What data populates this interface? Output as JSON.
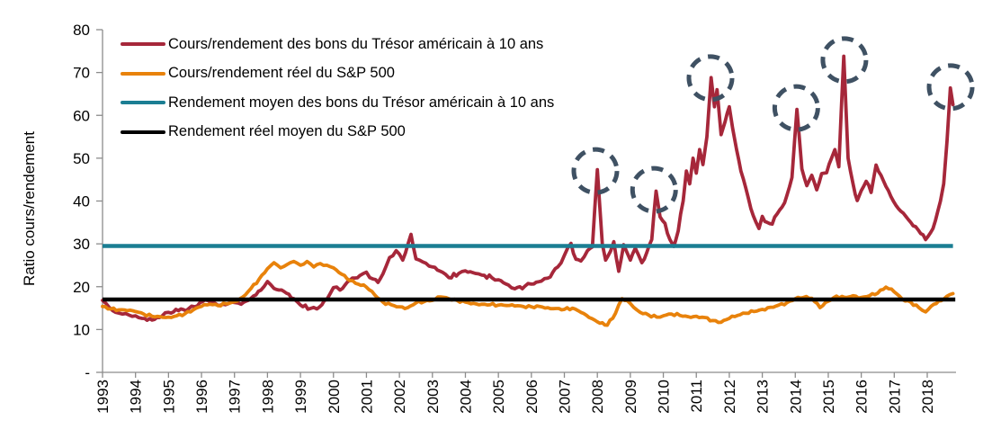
{
  "figure": {
    "background": "#ffffff",
    "y_axis_title": "Ratio cours/rendement"
  },
  "legend": {
    "items": [
      {
        "label": "Cours/rendement des bons du Trésor américain à 10 ans",
        "color": "#A6273A"
      },
      {
        "label": "Cours/rendement réel du S&P 500",
        "color": "#E8820B"
      },
      {
        "label": "Rendement moyen des bons du Trésor américain à 10 ans",
        "color": "#1B7E93"
      },
      {
        "label": "Rendement réel moyen du S&P 500",
        "color": "#000000"
      }
    ]
  },
  "chart_data": {
    "type": "line",
    "title": "",
    "xlabel": "",
    "ylabel": "Ratio cours/rendement",
    "xlim": [
      1993,
      2019.0
    ],
    "ylim": [
      0,
      80
    ],
    "grid": false,
    "legend_position": "top-left-inside",
    "axis_color": "#8C8C8C",
    "tick_label_color": "#000000",
    "yticks": {
      "values": [
        0,
        10,
        20,
        30,
        40,
        50,
        60,
        70,
        80
      ],
      "labels": [
        "-",
        "10",
        "20",
        "30",
        "40",
        "50",
        "60",
        "70",
        "80"
      ]
    },
    "xticks": {
      "values": [
        1993,
        1994,
        1995,
        1996,
        1997,
        1998,
        1999,
        2000,
        2001,
        2002,
        2003,
        2004,
        2005,
        2006,
        2007,
        2008,
        2009,
        2010,
        2011,
        2012,
        2013,
        2014,
        2015,
        2016,
        2017,
        2018
      ],
      "labels": [
        "1993",
        "1994",
        "1995",
        "1996",
        "1997",
        "1998",
        "1999",
        "2000",
        "2001",
        "2002",
        "2003",
        "2004",
        "2005",
        "2006",
        "2007",
        "2008",
        "2009",
        "2010",
        "2011",
        "2012",
        "2013",
        "2014",
        "2015",
        "2016",
        "2017",
        "2018"
      ]
    },
    "series": [
      {
        "name": "Cours/rendement des bons du Trésor américain à 10 ans",
        "type": "line",
        "color": "#A6273A",
        "width": 3.8,
        "jitter": 0.5,
        "points": [
          [
            1993.0,
            16.8
          ],
          [
            1993.2,
            15.2
          ],
          [
            1993.4,
            14.0
          ],
          [
            1993.6,
            13.6
          ],
          [
            1993.8,
            13.4
          ],
          [
            1994.0,
            13.2
          ],
          [
            1994.2,
            12.6
          ],
          [
            1994.5,
            12.2
          ],
          [
            1994.8,
            13.1
          ],
          [
            1995.0,
            14.0
          ],
          [
            1995.3,
            14.4
          ],
          [
            1995.6,
            14.8
          ],
          [
            1995.8,
            15.3
          ],
          [
            1996.1,
            16.9
          ],
          [
            1996.3,
            16.2
          ],
          [
            1996.5,
            15.6
          ],
          [
            1996.8,
            16.0
          ],
          [
            1997.0,
            16.3
          ],
          [
            1997.2,
            15.9
          ],
          [
            1997.5,
            17.3
          ],
          [
            1997.8,
            19.2
          ],
          [
            1998.0,
            21.2
          ],
          [
            1998.2,
            19.6
          ],
          [
            1998.5,
            18.9
          ],
          [
            1998.8,
            17.2
          ],
          [
            1999.0,
            15.7
          ],
          [
            1999.3,
            14.9
          ],
          [
            1999.5,
            14.8
          ],
          [
            1999.8,
            17.0
          ],
          [
            2000.0,
            19.8
          ],
          [
            2000.2,
            19.2
          ],
          [
            2000.5,
            21.5
          ],
          [
            2000.8,
            22.6
          ],
          [
            2001.0,
            23.4
          ],
          [
            2001.2,
            21.8
          ],
          [
            2001.35,
            21.0
          ],
          [
            2001.5,
            23.0
          ],
          [
            2001.7,
            26.8
          ],
          [
            2001.9,
            28.4
          ],
          [
            2002.1,
            26.2
          ],
          [
            2002.35,
            32.2
          ],
          [
            2002.5,
            26.5
          ],
          [
            2002.7,
            25.8
          ],
          [
            2002.9,
            24.8
          ],
          [
            2003.0,
            24.6
          ],
          [
            2003.3,
            23.4
          ],
          [
            2003.5,
            22.1
          ],
          [
            2003.8,
            23.1
          ],
          [
            2004.0,
            23.7
          ],
          [
            2004.3,
            23.1
          ],
          [
            2004.5,
            22.7
          ],
          [
            2004.8,
            22.1
          ],
          [
            2005.0,
            21.6
          ],
          [
            2005.3,
            20.4
          ],
          [
            2005.5,
            19.5
          ],
          [
            2005.8,
            20.1
          ],
          [
            2006.0,
            20.6
          ],
          [
            2006.3,
            21.3
          ],
          [
            2006.5,
            22.0
          ],
          [
            2006.8,
            24.6
          ],
          [
            2007.0,
            27.3
          ],
          [
            2007.2,
            30.1
          ],
          [
            2007.35,
            26.4
          ],
          [
            2007.5,
            26.0
          ],
          [
            2007.7,
            28.4
          ],
          [
            2007.85,
            29.3
          ],
          [
            2008.0,
            47.3
          ],
          [
            2008.15,
            30.0
          ],
          [
            2008.25,
            26.2
          ],
          [
            2008.4,
            28.3
          ],
          [
            2008.5,
            30.5
          ],
          [
            2008.65,
            23.6
          ],
          [
            2008.8,
            29.8
          ],
          [
            2009.0,
            26.2
          ],
          [
            2009.15,
            29.0
          ],
          [
            2009.35,
            25.6
          ],
          [
            2009.5,
            28.0
          ],
          [
            2009.65,
            31.0
          ],
          [
            2009.78,
            42.3
          ],
          [
            2009.9,
            36.3
          ],
          [
            2010.05,
            34.8
          ],
          [
            2010.2,
            31.0
          ],
          [
            2010.32,
            29.4
          ],
          [
            2010.45,
            33.0
          ],
          [
            2010.6,
            40.0
          ],
          [
            2010.7,
            47.0
          ],
          [
            2010.8,
            44.0
          ],
          [
            2010.9,
            50.0
          ],
          [
            2011.0,
            46.5
          ],
          [
            2011.1,
            52.0
          ],
          [
            2011.2,
            48.5
          ],
          [
            2011.32,
            55.0
          ],
          [
            2011.45,
            68.8
          ],
          [
            2011.55,
            62.0
          ],
          [
            2011.63,
            66.0
          ],
          [
            2011.75,
            55.5
          ],
          [
            2011.87,
            58.5
          ],
          [
            2012.0,
            62.0
          ],
          [
            2012.1,
            57.0
          ],
          [
            2012.22,
            52.0
          ],
          [
            2012.35,
            47.0
          ],
          [
            2012.5,
            43.0
          ],
          [
            2012.65,
            38.3
          ],
          [
            2012.8,
            35.2
          ],
          [
            2012.9,
            33.6
          ],
          [
            2013.0,
            36.4
          ],
          [
            2013.15,
            35.0
          ],
          [
            2013.3,
            34.6
          ],
          [
            2013.45,
            37.0
          ],
          [
            2013.6,
            38.6
          ],
          [
            2013.75,
            41.4
          ],
          [
            2013.9,
            45.5
          ],
          [
            2014.05,
            61.4
          ],
          [
            2014.2,
            47.5
          ],
          [
            2014.35,
            43.6
          ],
          [
            2014.5,
            46.0
          ],
          [
            2014.65,
            42.6
          ],
          [
            2014.8,
            46.4
          ],
          [
            2014.95,
            46.6
          ],
          [
            2015.1,
            50.0
          ],
          [
            2015.2,
            52.0
          ],
          [
            2015.32,
            48.0
          ],
          [
            2015.47,
            73.8
          ],
          [
            2015.6,
            50.0
          ],
          [
            2015.75,
            44.0
          ],
          [
            2015.88,
            40.1
          ],
          [
            2016.0,
            42.4
          ],
          [
            2016.15,
            44.6
          ],
          [
            2016.3,
            42.0
          ],
          [
            2016.45,
            48.4
          ],
          [
            2016.6,
            46.0
          ],
          [
            2016.75,
            43.4
          ],
          [
            2016.9,
            41.0
          ],
          [
            2017.05,
            39.0
          ],
          [
            2017.2,
            37.6
          ],
          [
            2017.35,
            36.4
          ],
          [
            2017.5,
            35.0
          ],
          [
            2017.65,
            34.0
          ],
          [
            2017.8,
            32.4
          ],
          [
            2017.95,
            31.0
          ],
          [
            2018.1,
            32.6
          ],
          [
            2018.25,
            35.5
          ],
          [
            2018.4,
            40.0
          ],
          [
            2018.5,
            44.0
          ],
          [
            2018.6,
            54.0
          ],
          [
            2018.7,
            66.4
          ],
          [
            2018.78,
            62.5
          ]
        ]
      },
      {
        "name": "Cours/rendement réel du S&P 500",
        "type": "line",
        "color": "#E8820B",
        "width": 3.8,
        "jitter": 0.35,
        "points": [
          [
            1993.0,
            15.4
          ],
          [
            1993.25,
            14.8
          ],
          [
            1993.5,
            14.6
          ],
          [
            1993.75,
            14.4
          ],
          [
            1994.0,
            14.2
          ],
          [
            1994.25,
            13.6
          ],
          [
            1994.5,
            13.1
          ],
          [
            1994.75,
            13.0
          ],
          [
            1995.0,
            12.9
          ],
          [
            1995.25,
            13.2
          ],
          [
            1995.5,
            13.7
          ],
          [
            1995.75,
            14.6
          ],
          [
            1996.0,
            15.4
          ],
          [
            1996.25,
            15.9
          ],
          [
            1996.5,
            15.6
          ],
          [
            1996.75,
            16.0
          ],
          [
            1997.0,
            16.5
          ],
          [
            1997.25,
            17.6
          ],
          [
            1997.5,
            19.6
          ],
          [
            1997.75,
            21.8
          ],
          [
            1998.0,
            24.2
          ],
          [
            1998.2,
            25.6
          ],
          [
            1998.4,
            24.4
          ],
          [
            1998.6,
            25.2
          ],
          [
            1998.8,
            25.9
          ],
          [
            1999.0,
            25.0
          ],
          [
            1999.2,
            25.9
          ],
          [
            1999.4,
            24.6
          ],
          [
            1999.6,
            25.4
          ],
          [
            1999.8,
            25.0
          ],
          [
            2000.0,
            24.4
          ],
          [
            2000.25,
            22.9
          ],
          [
            2000.5,
            21.4
          ],
          [
            2000.75,
            20.6
          ],
          [
            2001.0,
            19.9
          ],
          [
            2001.25,
            18.1
          ],
          [
            2001.5,
            16.4
          ],
          [
            2001.75,
            15.8
          ],
          [
            2002.0,
            15.3
          ],
          [
            2002.25,
            15.1
          ],
          [
            2002.5,
            16.2
          ],
          [
            2002.75,
            16.5
          ],
          [
            2003.0,
            16.8
          ],
          [
            2003.25,
            17.6
          ],
          [
            2003.5,
            17.2
          ],
          [
            2003.75,
            16.8
          ],
          [
            2004.0,
            16.4
          ],
          [
            2004.25,
            16.1
          ],
          [
            2004.5,
            15.9
          ],
          [
            2004.75,
            15.8
          ],
          [
            2005.0,
            15.7
          ],
          [
            2005.25,
            15.6
          ],
          [
            2005.5,
            15.5
          ],
          [
            2005.75,
            15.4
          ],
          [
            2006.0,
            15.3
          ],
          [
            2006.25,
            15.4
          ],
          [
            2006.5,
            15.1
          ],
          [
            2006.75,
            14.9
          ],
          [
            2007.0,
            14.7
          ],
          [
            2007.25,
            15.0
          ],
          [
            2007.5,
            14.0
          ],
          [
            2007.75,
            12.8
          ],
          [
            2008.0,
            11.8
          ],
          [
            2008.3,
            11.0
          ],
          [
            2008.55,
            13.8
          ],
          [
            2008.75,
            17.2
          ],
          [
            2008.9,
            16.8
          ],
          [
            2009.1,
            15.2
          ],
          [
            2009.3,
            14.0
          ],
          [
            2009.55,
            13.4
          ],
          [
            2009.8,
            12.9
          ],
          [
            2010.0,
            13.2
          ],
          [
            2010.25,
            13.6
          ],
          [
            2010.5,
            13.3
          ],
          [
            2010.75,
            13.0
          ],
          [
            2011.0,
            13.1
          ],
          [
            2011.25,
            12.8
          ],
          [
            2011.5,
            12.1
          ],
          [
            2011.75,
            11.7
          ],
          [
            2012.0,
            12.6
          ],
          [
            2012.25,
            13.3
          ],
          [
            2012.5,
            13.8
          ],
          [
            2012.75,
            14.2
          ],
          [
            2013.0,
            14.7
          ],
          [
            2013.25,
            15.2
          ],
          [
            2013.5,
            15.7
          ],
          [
            2013.75,
            16.3
          ],
          [
            2014.0,
            17.2
          ],
          [
            2014.25,
            17.5
          ],
          [
            2014.5,
            17.3
          ],
          [
            2014.75,
            15.1
          ],
          [
            2015.0,
            16.6
          ],
          [
            2015.25,
            17.8
          ],
          [
            2015.5,
            17.5
          ],
          [
            2015.75,
            17.9
          ],
          [
            2016.0,
            17.5
          ],
          [
            2016.25,
            17.9
          ],
          [
            2016.5,
            18.5
          ],
          [
            2016.75,
            19.9
          ],
          [
            2017.0,
            18.8
          ],
          [
            2017.25,
            17.0
          ],
          [
            2017.5,
            16.4
          ],
          [
            2017.75,
            15.1
          ],
          [
            2017.95,
            14.1
          ],
          [
            2018.2,
            15.9
          ],
          [
            2018.5,
            17.1
          ],
          [
            2018.78,
            18.4
          ]
        ]
      },
      {
        "name": "Rendement moyen des bons du Trésor américain à 10 ans",
        "type": "hline",
        "color": "#1B7E93",
        "width": 4.5,
        "value": 29.5,
        "x_start": 1993.0,
        "x_end": 2018.78
      },
      {
        "name": "Rendement réel moyen du S&P 500",
        "type": "hline",
        "color": "#000000",
        "width": 4.5,
        "value": 17.0,
        "x_start": 1993.0,
        "x_end": 2018.85
      }
    ],
    "annotations": {
      "circled_peaks": {
        "color": "#3F5163",
        "stroke_width": 5,
        "dash": "13 9",
        "radius_px": 24,
        "centers": [
          [
            2007.94,
            47.0
          ],
          [
            2009.72,
            42.6
          ],
          [
            2011.43,
            68.7
          ],
          [
            2014.03,
            61.7
          ],
          [
            2015.49,
            72.9
          ],
          [
            2018.71,
            66.6
          ]
        ]
      }
    }
  }
}
